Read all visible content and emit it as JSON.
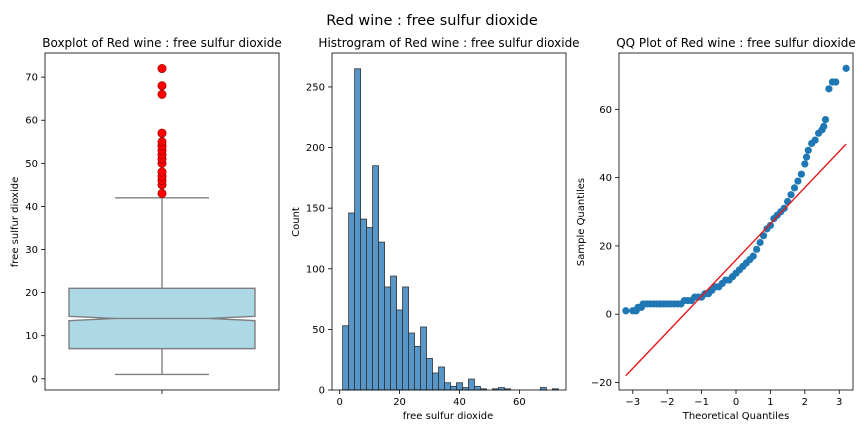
{
  "figure_title": "Red wine : free sulfur dioxide",
  "chart_data": [
    {
      "type": "box",
      "title": "Boxplot of Red wine : free sulfur dioxide",
      "xlabel": "",
      "ylabel": "free sulfur dioxide",
      "ylim": [
        -2.6,
        75.6
      ],
      "yticks": [
        0,
        10,
        20,
        30,
        40,
        50,
        60,
        70
      ],
      "notched": true,
      "box": {
        "min": 1,
        "q1": 7,
        "median": 14,
        "q3": 21,
        "max": 42,
        "notch_low": 13.5,
        "notch_high": 14.5,
        "fill": "#add8e6",
        "line": "#7f7f7f"
      },
      "outliers": [
        43,
        45,
        46,
        47,
        48,
        50,
        51,
        52,
        53,
        54,
        55,
        57,
        66,
        68,
        72
      ],
      "outlier_color": "#ff0000"
    },
    {
      "type": "bar",
      "title": "Histrogram of Red wine : free sulfur dioxide",
      "xlabel": "free sulfur dioxide",
      "ylabel": "Count",
      "xlim": [
        -2.55,
        75.55
      ],
      "ylim": [
        0,
        278
      ],
      "xticks": [
        0,
        20,
        40,
        60
      ],
      "yticks": [
        0,
        50,
        100,
        150,
        200,
        250
      ],
      "bin_start": 1,
      "bin_width": 2.0,
      "counts": [
        53,
        146,
        265,
        141,
        134,
        185,
        122,
        85,
        94,
        66,
        85,
        47,
        36,
        52,
        26,
        14,
        19,
        6,
        3,
        6,
        2,
        9,
        3,
        1,
        0,
        1,
        2,
        1,
        0,
        0,
        0,
        0,
        0,
        2,
        0,
        1
      ],
      "bar_color": "#5696c8",
      "edge_color": "#333333"
    },
    {
      "type": "scatter",
      "title": "QQ Plot of Red wine : free sulfur dioxide",
      "xlabel": "Theoretical Quantiles",
      "ylabel": "Sample Quantiles",
      "xlim": [
        -3.4,
        3.4
      ],
      "ylim": [
        -22.2,
        76.5
      ],
      "xticks": [
        -3,
        -2,
        -1,
        0,
        1,
        2,
        3
      ],
      "yticks": [
        -20,
        0,
        20,
        40,
        60
      ],
      "points": [
        [
          -3.2,
          1
        ],
        [
          -3.0,
          1
        ],
        [
          -2.9,
          1
        ],
        [
          -2.85,
          2
        ],
        [
          -2.75,
          2
        ],
        [
          -2.7,
          3
        ],
        [
          -2.6,
          3
        ],
        [
          -2.5,
          3
        ],
        [
          -2.4,
          3
        ],
        [
          -2.3,
          3
        ],
        [
          -2.2,
          3
        ],
        [
          -2.1,
          3
        ],
        [
          -2.0,
          3
        ],
        [
          -1.9,
          3
        ],
        [
          -1.8,
          3
        ],
        [
          -1.7,
          3
        ],
        [
          -1.6,
          3
        ],
        [
          -1.5,
          4
        ],
        [
          -1.4,
          4
        ],
        [
          -1.3,
          4
        ],
        [
          -1.2,
          5
        ],
        [
          -1.1,
          5
        ],
        [
          -1.0,
          5
        ],
        [
          -0.9,
          6
        ],
        [
          -0.8,
          6
        ],
        [
          -0.7,
          7
        ],
        [
          -0.6,
          8
        ],
        [
          -0.5,
          8
        ],
        [
          -0.4,
          9
        ],
        [
          -0.3,
          10
        ],
        [
          -0.2,
          10
        ],
        [
          -0.1,
          11
        ],
        [
          0.0,
          12
        ],
        [
          0.1,
          13
        ],
        [
          0.2,
          14
        ],
        [
          0.3,
          15
        ],
        [
          0.4,
          16
        ],
        [
          0.5,
          17
        ],
        [
          0.6,
          19
        ],
        [
          0.7,
          21
        ],
        [
          0.8,
          23
        ],
        [
          0.9,
          25
        ],
        [
          1.0,
          26
        ],
        [
          1.1,
          28
        ],
        [
          1.2,
          29
        ],
        [
          1.3,
          30
        ],
        [
          1.4,
          31
        ],
        [
          1.5,
          33
        ],
        [
          1.6,
          35
        ],
        [
          1.7,
          37
        ],
        [
          1.8,
          39
        ],
        [
          1.9,
          41
        ],
        [
          2.0,
          44
        ],
        [
          2.05,
          46
        ],
        [
          2.1,
          48
        ],
        [
          2.2,
          50
        ],
        [
          2.3,
          51
        ],
        [
          2.4,
          53
        ],
        [
          2.5,
          54
        ],
        [
          2.55,
          55
        ],
        [
          2.6,
          57
        ],
        [
          2.7,
          66
        ],
        [
          2.8,
          68
        ],
        [
          2.9,
          68
        ],
        [
          3.2,
          72
        ]
      ],
      "point_color": "#1f77b4",
      "reference_line": [
        [
          -3.2,
          -18
        ],
        [
          3.2,
          49.8
        ]
      ],
      "line_color": "#e41a1c"
    }
  ]
}
